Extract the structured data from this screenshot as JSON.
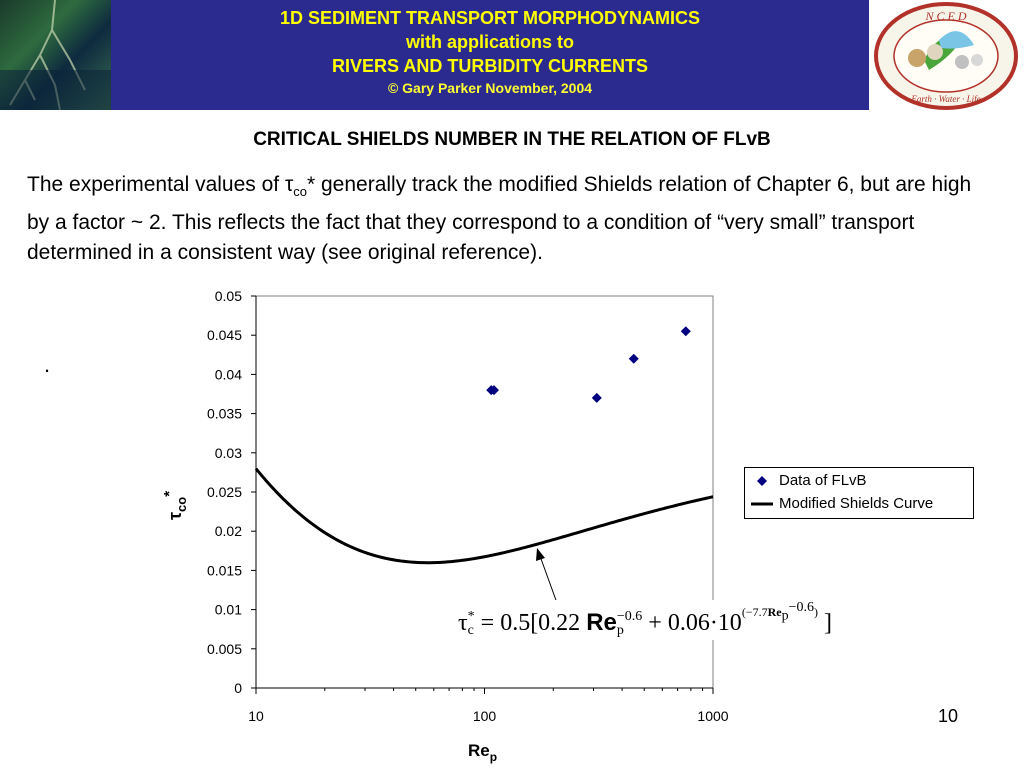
{
  "header": {
    "line1": "1D SEDIMENT TRANSPORT MORPHODYNAMICS",
    "line2": "with applications to",
    "line3": "RIVERS AND TURBIDITY CURRENTS",
    "line4": "© Gary Parker November, 2004",
    "logo_text_top": "N C E D",
    "logo_text_bottom": "Earth · Water · Life",
    "band_color": "#2b2b8f",
    "text_color": "#ffff00"
  },
  "slide": {
    "title": "CRITICAL SHIELDS NUMBER IN THE RELATION OF FLvB",
    "para_prefix": "The experimental values of ",
    "para_tau": "τ",
    "para_sub": "co",
    "para_suffix": "* generally track the modified Shields relation of Chapter 6, but are high by a factor ~ 2.  This reflects the fact that they correspond to a condition of “very small” transport determined in a consistent way (see original reference).",
    "stray_dot": ".",
    "page_number": "10"
  },
  "formula": {
    "tau": "τ",
    "tau_sup": "*",
    "tau_sub": "c",
    "eq": " = 0.5[0.22 ",
    "re": "Re",
    "re_sub": "p",
    "re_sup": "−0.6",
    "mid": " + 0.06·10",
    "exp_a": "(−7.7",
    "exp_re": "Re",
    "exp_re_sub": "p",
    "exp_re_sup": "−0.6",
    "exp_b": ")",
    "close": "]"
  },
  "chart_data": {
    "type": "scatter",
    "x_scale": "log",
    "xlim": [
      10,
      1000
    ],
    "ylim": [
      0,
      0.05
    ],
    "x_ticks": [
      "10",
      "100",
      "1000"
    ],
    "y_ticks": [
      "0",
      "0.005",
      "0.01",
      "0.015",
      "0.02",
      "0.025",
      "0.03",
      "0.035",
      "0.04",
      "0.045",
      "0.05"
    ],
    "xlabel_main": "Re",
    "xlabel_sub": "p",
    "ylabel_main": "τ",
    "ylabel_sub": "co",
    "ylabel_sup": "*",
    "grid": false,
    "legend_position": "right",
    "series": [
      {
        "name": "Data of FLvB",
        "kind": "scatter",
        "marker": "diamond",
        "color": "#000080",
        "points": [
          [
            107,
            0.038
          ],
          [
            110,
            0.038
          ],
          [
            310,
            0.037
          ],
          [
            450,
            0.042
          ],
          [
            760,
            0.0455
          ]
        ]
      },
      {
        "name": "Modified Shields Curve",
        "kind": "line",
        "color": "#000000",
        "formula": "0.5*(0.22*Re^-0.6 + 0.06*10^(-7.7*Re^-0.6))"
      }
    ]
  }
}
